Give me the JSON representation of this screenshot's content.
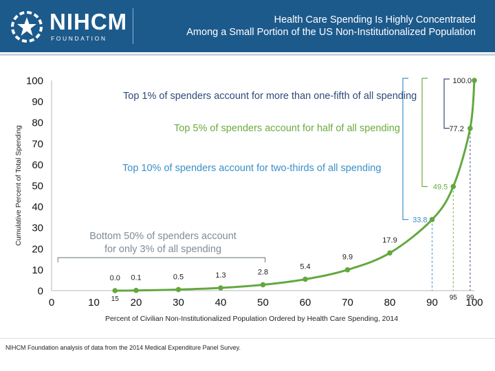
{
  "header": {
    "logo_name": "NIHCM",
    "logo_sub": "FOUNDATION",
    "title_line1": "Health Care Spending Is Highly Concentrated",
    "title_line2": "Among a Small Portion of the US Non-Institutionalized Population"
  },
  "colors": {
    "header_bg": "#1d5a8c",
    "curve": "#62a83e",
    "top1": "#2e4a7a",
    "top5": "#6aab3e",
    "top10": "#3a8fc8",
    "bottom50": "#7f8c95"
  },
  "chart_data": {
    "type": "line",
    "xlabel": "Percent of Civilian Non-Institutionalized Population Ordered by Health Care Spending, 2014",
    "ylabel": "Cumulative Percent of Total Spending",
    "xlim": [
      0,
      100
    ],
    "ylim": [
      0,
      100
    ],
    "x_ticks": [
      0,
      10,
      20,
      30,
      40,
      50,
      60,
      70,
      80,
      90,
      100
    ],
    "y_ticks": [
      0,
      10,
      20,
      30,
      40,
      50,
      60,
      70,
      80,
      90,
      100
    ],
    "series": [
      {
        "name": "Cumulative spending",
        "x": [
          15,
          20,
          30,
          40,
          50,
          60,
          70,
          80,
          90,
          95,
          99,
          100
        ],
        "y": [
          0.0,
          0.1,
          0.5,
          1.3,
          2.8,
          5.4,
          9.9,
          17.9,
          33.8,
          49.5,
          77.2,
          100.0
        ],
        "labels": [
          "0.0",
          "0.1",
          "0.5",
          "1.3",
          "2.8",
          "5.4",
          "9.9",
          "17.9",
          "33.8",
          "49.5",
          "77.2",
          "100.0"
        ]
      }
    ],
    "extra_x_labels": [
      "15",
      "95",
      "99"
    ],
    "annotations": {
      "top1": "Top 1% of spenders account for more than one-fifth of all spending",
      "top5": "Top 5% of spenders account for half of all spending",
      "top10": "Top 10% of spenders account for two-thirds of all spending",
      "bottom50_line1": "Bottom 50% of spenders account",
      "bottom50_line2": "for only 3% of all spending"
    }
  },
  "footnote": "NIHCM Foundation analysis of data from the 2014 Medical Expenditure Panel Survey."
}
